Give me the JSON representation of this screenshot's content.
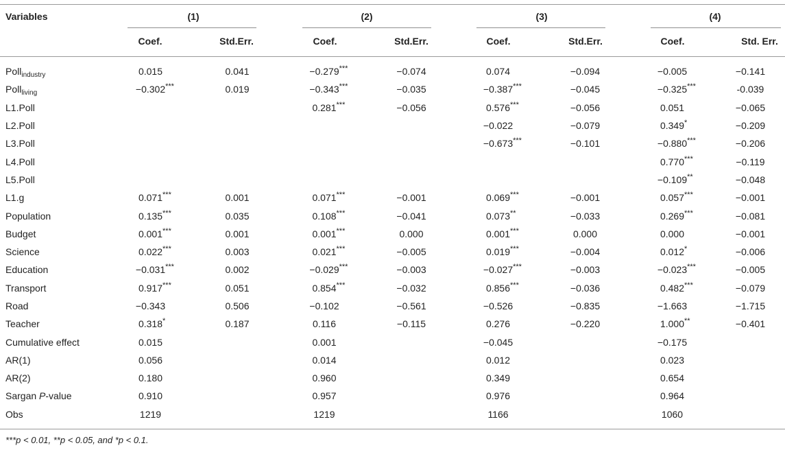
{
  "header": {
    "variables_label": "Variables",
    "models": [
      "(1)",
      "(2)",
      "(3)",
      "(4)"
    ],
    "coef_label": "Coef.",
    "se_labels": [
      "Std.Err.",
      "Std.Err.",
      "Std.Err.",
      "Std. Err."
    ]
  },
  "rows": [
    {
      "label": "Poll",
      "sub": "industry",
      "cells": [
        [
          "0.015",
          ""
        ],
        [
          "0.041",
          ""
        ],
        [
          "−0.279",
          "***"
        ],
        [
          "−0.074",
          ""
        ],
        [
          "0.074",
          ""
        ],
        [
          "−0.094",
          ""
        ],
        [
          "−0.005",
          ""
        ],
        [
          "−0.141",
          ""
        ]
      ]
    },
    {
      "label": "Poll",
      "sub": "living",
      "cells": [
        [
          "−0.302",
          "***"
        ],
        [
          "0.019",
          ""
        ],
        [
          "−0.343",
          "***"
        ],
        [
          "−0.035",
          ""
        ],
        [
          "−0.387",
          "***"
        ],
        [
          "−0.045",
          ""
        ],
        [
          "−0.325",
          "***"
        ],
        [
          "-0.039",
          ""
        ]
      ]
    },
    {
      "label": "L1.Poll",
      "cells": [
        [
          "",
          ""
        ],
        [
          "",
          ""
        ],
        [
          "0.281",
          "***"
        ],
        [
          "−0.056",
          ""
        ],
        [
          "0.576",
          "***"
        ],
        [
          "−0.056",
          ""
        ],
        [
          "0.051",
          ""
        ],
        [
          "−0.065",
          ""
        ]
      ]
    },
    {
      "label": "L2.Poll",
      "cells": [
        [
          "",
          ""
        ],
        [
          "",
          ""
        ],
        [
          "",
          ""
        ],
        [
          "",
          ""
        ],
        [
          "−0.022",
          ""
        ],
        [
          "−0.079",
          ""
        ],
        [
          "0.349",
          "*"
        ],
        [
          "−0.209",
          ""
        ]
      ]
    },
    {
      "label": "L3.Poll",
      "cells": [
        [
          "",
          ""
        ],
        [
          "",
          ""
        ],
        [
          "",
          ""
        ],
        [
          "",
          ""
        ],
        [
          "−0.673",
          "***"
        ],
        [
          "−0.101",
          ""
        ],
        [
          "−0.880",
          "***"
        ],
        [
          "−0.206",
          ""
        ]
      ]
    },
    {
      "label": "L4.Poll",
      "cells": [
        [
          "",
          ""
        ],
        [
          "",
          ""
        ],
        [
          "",
          ""
        ],
        [
          "",
          ""
        ],
        [
          "",
          ""
        ],
        [
          "",
          ""
        ],
        [
          "0.770",
          "***"
        ],
        [
          "−0.119",
          ""
        ]
      ]
    },
    {
      "label": "L5.Poll",
      "cells": [
        [
          "",
          ""
        ],
        [
          "",
          ""
        ],
        [
          "",
          ""
        ],
        [
          "",
          ""
        ],
        [
          "",
          ""
        ],
        [
          "",
          ""
        ],
        [
          "−0.109",
          "**"
        ],
        [
          "−0.048",
          ""
        ]
      ]
    },
    {
      "label": "L1.g",
      "cells": [
        [
          "0.071",
          "***"
        ],
        [
          "0.001",
          ""
        ],
        [
          "0.071",
          "***"
        ],
        [
          "−0.001",
          ""
        ],
        [
          "0.069",
          "***"
        ],
        [
          "−0.001",
          ""
        ],
        [
          "0.057",
          "***"
        ],
        [
          "−0.001",
          ""
        ]
      ]
    },
    {
      "label": "Population",
      "cells": [
        [
          "0.135",
          "***"
        ],
        [
          "0.035",
          ""
        ],
        [
          "0.108",
          "***"
        ],
        [
          "−0.041",
          ""
        ],
        [
          "0.073",
          "**"
        ],
        [
          "−0.033",
          ""
        ],
        [
          "0.269",
          "***"
        ],
        [
          "−0.081",
          ""
        ]
      ]
    },
    {
      "label": "Budget",
      "cells": [
        [
          "0.001",
          "***"
        ],
        [
          "0.001",
          ""
        ],
        [
          "0.001",
          "***"
        ],
        [
          "0.000",
          ""
        ],
        [
          "0.001",
          "***"
        ],
        [
          "0.000",
          ""
        ],
        [
          "0.000",
          ""
        ],
        [
          "−0.001",
          ""
        ]
      ]
    },
    {
      "label": "Science",
      "cells": [
        [
          "0.022",
          "***"
        ],
        [
          "0.003",
          ""
        ],
        [
          "0.021",
          "***"
        ],
        [
          "−0.005",
          ""
        ],
        [
          "0.019",
          "***"
        ],
        [
          "−0.004",
          ""
        ],
        [
          "0.012",
          "*"
        ],
        [
          "−0.006",
          ""
        ]
      ]
    },
    {
      "label": "Education",
      "cells": [
        [
          "−0.031",
          "***"
        ],
        [
          "0.002",
          ""
        ],
        [
          "−0.029",
          "***"
        ],
        [
          "−0.003",
          ""
        ],
        [
          "−0.027",
          "***"
        ],
        [
          "−0.003",
          ""
        ],
        [
          "−0.023",
          "***"
        ],
        [
          "−0.005",
          ""
        ]
      ]
    },
    {
      "label": "Transport",
      "cells": [
        [
          "0.917",
          "***"
        ],
        [
          "0.051",
          ""
        ],
        [
          "0.854",
          "***"
        ],
        [
          "−0.032",
          ""
        ],
        [
          "0.856",
          "***"
        ],
        [
          "−0.036",
          ""
        ],
        [
          "0.482",
          "***"
        ],
        [
          "−0.079",
          ""
        ]
      ]
    },
    {
      "label": "Road",
      "cells": [
        [
          "−0.343",
          ""
        ],
        [
          "0.506",
          ""
        ],
        [
          "−0.102",
          ""
        ],
        [
          "−0.561",
          ""
        ],
        [
          "−0.526",
          ""
        ],
        [
          "−0.835",
          ""
        ],
        [
          "−1.663",
          ""
        ],
        [
          "−1.715",
          ""
        ]
      ]
    },
    {
      "label": "Teacher",
      "cells": [
        [
          "0.318",
          "*"
        ],
        [
          "0.187",
          ""
        ],
        [
          "0.116",
          ""
        ],
        [
          "−0.115",
          ""
        ],
        [
          "0.276",
          ""
        ],
        [
          "−0.220",
          ""
        ],
        [
          "1.000",
          "**"
        ],
        [
          "−0.401",
          ""
        ]
      ]
    },
    {
      "label": "Cumulative effect",
      "cells": [
        [
          "0.015",
          ""
        ],
        [
          "",
          ""
        ],
        [
          "0.001",
          ""
        ],
        [
          "",
          ""
        ],
        [
          "−0.045",
          ""
        ],
        [
          "",
          ""
        ],
        [
          "−0.175",
          ""
        ],
        [
          "",
          ""
        ]
      ]
    },
    {
      "label": "AR(1)",
      "cells": [
        [
          "0.056",
          ""
        ],
        [
          "",
          ""
        ],
        [
          "0.014",
          ""
        ],
        [
          "",
          ""
        ],
        [
          "0.012",
          ""
        ],
        [
          "",
          ""
        ],
        [
          "0.023",
          ""
        ],
        [
          "",
          ""
        ]
      ]
    },
    {
      "label": "AR(2)",
      "cells": [
        [
          "0.180",
          ""
        ],
        [
          "",
          ""
        ],
        [
          "0.960",
          ""
        ],
        [
          "",
          ""
        ],
        [
          "0.349",
          ""
        ],
        [
          "",
          ""
        ],
        [
          "0.654",
          ""
        ],
        [
          "",
          ""
        ]
      ]
    },
    {
      "label": "Sargan ",
      "italic": "P",
      "suffix": "-value",
      "cells": [
        [
          "0.910",
          ""
        ],
        [
          "",
          ""
        ],
        [
          "0.957",
          ""
        ],
        [
          "",
          ""
        ],
        [
          "0.976",
          ""
        ],
        [
          "",
          ""
        ],
        [
          "0.964",
          ""
        ],
        [
          "",
          ""
        ]
      ]
    },
    {
      "label": "Obs",
      "cells": [
        [
          "1219",
          ""
        ],
        [
          "",
          ""
        ],
        [
          "1219",
          ""
        ],
        [
          "",
          ""
        ],
        [
          "1166",
          ""
        ],
        [
          "",
          ""
        ],
        [
          "1060",
          ""
        ],
        [
          "",
          ""
        ]
      ]
    }
  ],
  "footnote": "***p < 0.01, **p < 0.05, and *p < 0.1."
}
